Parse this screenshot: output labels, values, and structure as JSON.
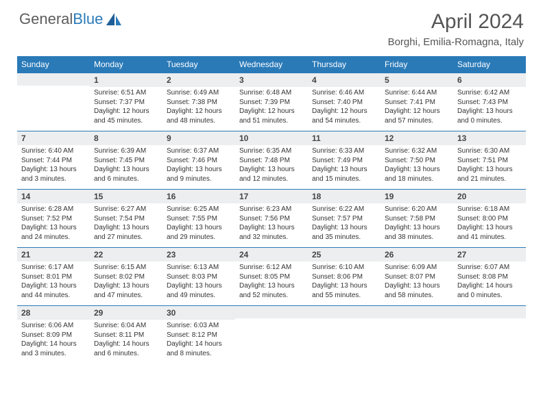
{
  "logo": {
    "word1": "General",
    "word2": "Blue"
  },
  "title": "April 2024",
  "location": "Borghi, Emilia-Romagna, Italy",
  "colors": {
    "header_bg": "#2a7ab8",
    "header_text": "#ffffff",
    "daynum_bg": "#eceeef",
    "daynum_border": "#2a7ab8",
    "body_text": "#333333",
    "logo_gray": "#5c5c5c",
    "logo_blue": "#2a7ab8"
  },
  "weekdays": [
    "Sunday",
    "Monday",
    "Tuesday",
    "Wednesday",
    "Thursday",
    "Friday",
    "Saturday"
  ],
  "weeks": [
    [
      null,
      {
        "n": "1",
        "sr": "Sunrise: 6:51 AM",
        "ss": "Sunset: 7:37 PM",
        "dl1": "Daylight: 12 hours",
        "dl2": "and 45 minutes."
      },
      {
        "n": "2",
        "sr": "Sunrise: 6:49 AM",
        "ss": "Sunset: 7:38 PM",
        "dl1": "Daylight: 12 hours",
        "dl2": "and 48 minutes."
      },
      {
        "n": "3",
        "sr": "Sunrise: 6:48 AM",
        "ss": "Sunset: 7:39 PM",
        "dl1": "Daylight: 12 hours",
        "dl2": "and 51 minutes."
      },
      {
        "n": "4",
        "sr": "Sunrise: 6:46 AM",
        "ss": "Sunset: 7:40 PM",
        "dl1": "Daylight: 12 hours",
        "dl2": "and 54 minutes."
      },
      {
        "n": "5",
        "sr": "Sunrise: 6:44 AM",
        "ss": "Sunset: 7:41 PM",
        "dl1": "Daylight: 12 hours",
        "dl2": "and 57 minutes."
      },
      {
        "n": "6",
        "sr": "Sunrise: 6:42 AM",
        "ss": "Sunset: 7:43 PM",
        "dl1": "Daylight: 13 hours",
        "dl2": "and 0 minutes."
      }
    ],
    [
      {
        "n": "7",
        "sr": "Sunrise: 6:40 AM",
        "ss": "Sunset: 7:44 PM",
        "dl1": "Daylight: 13 hours",
        "dl2": "and 3 minutes."
      },
      {
        "n": "8",
        "sr": "Sunrise: 6:39 AM",
        "ss": "Sunset: 7:45 PM",
        "dl1": "Daylight: 13 hours",
        "dl2": "and 6 minutes."
      },
      {
        "n": "9",
        "sr": "Sunrise: 6:37 AM",
        "ss": "Sunset: 7:46 PM",
        "dl1": "Daylight: 13 hours",
        "dl2": "and 9 minutes."
      },
      {
        "n": "10",
        "sr": "Sunrise: 6:35 AM",
        "ss": "Sunset: 7:48 PM",
        "dl1": "Daylight: 13 hours",
        "dl2": "and 12 minutes."
      },
      {
        "n": "11",
        "sr": "Sunrise: 6:33 AM",
        "ss": "Sunset: 7:49 PM",
        "dl1": "Daylight: 13 hours",
        "dl2": "and 15 minutes."
      },
      {
        "n": "12",
        "sr": "Sunrise: 6:32 AM",
        "ss": "Sunset: 7:50 PM",
        "dl1": "Daylight: 13 hours",
        "dl2": "and 18 minutes."
      },
      {
        "n": "13",
        "sr": "Sunrise: 6:30 AM",
        "ss": "Sunset: 7:51 PM",
        "dl1": "Daylight: 13 hours",
        "dl2": "and 21 minutes."
      }
    ],
    [
      {
        "n": "14",
        "sr": "Sunrise: 6:28 AM",
        "ss": "Sunset: 7:52 PM",
        "dl1": "Daylight: 13 hours",
        "dl2": "and 24 minutes."
      },
      {
        "n": "15",
        "sr": "Sunrise: 6:27 AM",
        "ss": "Sunset: 7:54 PM",
        "dl1": "Daylight: 13 hours",
        "dl2": "and 27 minutes."
      },
      {
        "n": "16",
        "sr": "Sunrise: 6:25 AM",
        "ss": "Sunset: 7:55 PM",
        "dl1": "Daylight: 13 hours",
        "dl2": "and 29 minutes."
      },
      {
        "n": "17",
        "sr": "Sunrise: 6:23 AM",
        "ss": "Sunset: 7:56 PM",
        "dl1": "Daylight: 13 hours",
        "dl2": "and 32 minutes."
      },
      {
        "n": "18",
        "sr": "Sunrise: 6:22 AM",
        "ss": "Sunset: 7:57 PM",
        "dl1": "Daylight: 13 hours",
        "dl2": "and 35 minutes."
      },
      {
        "n": "19",
        "sr": "Sunrise: 6:20 AM",
        "ss": "Sunset: 7:58 PM",
        "dl1": "Daylight: 13 hours",
        "dl2": "and 38 minutes."
      },
      {
        "n": "20",
        "sr": "Sunrise: 6:18 AM",
        "ss": "Sunset: 8:00 PM",
        "dl1": "Daylight: 13 hours",
        "dl2": "and 41 minutes."
      }
    ],
    [
      {
        "n": "21",
        "sr": "Sunrise: 6:17 AM",
        "ss": "Sunset: 8:01 PM",
        "dl1": "Daylight: 13 hours",
        "dl2": "and 44 minutes."
      },
      {
        "n": "22",
        "sr": "Sunrise: 6:15 AM",
        "ss": "Sunset: 8:02 PM",
        "dl1": "Daylight: 13 hours",
        "dl2": "and 47 minutes."
      },
      {
        "n": "23",
        "sr": "Sunrise: 6:13 AM",
        "ss": "Sunset: 8:03 PM",
        "dl1": "Daylight: 13 hours",
        "dl2": "and 49 minutes."
      },
      {
        "n": "24",
        "sr": "Sunrise: 6:12 AM",
        "ss": "Sunset: 8:05 PM",
        "dl1": "Daylight: 13 hours",
        "dl2": "and 52 minutes."
      },
      {
        "n": "25",
        "sr": "Sunrise: 6:10 AM",
        "ss": "Sunset: 8:06 PM",
        "dl1": "Daylight: 13 hours",
        "dl2": "and 55 minutes."
      },
      {
        "n": "26",
        "sr": "Sunrise: 6:09 AM",
        "ss": "Sunset: 8:07 PM",
        "dl1": "Daylight: 13 hours",
        "dl2": "and 58 minutes."
      },
      {
        "n": "27",
        "sr": "Sunrise: 6:07 AM",
        "ss": "Sunset: 8:08 PM",
        "dl1": "Daylight: 14 hours",
        "dl2": "and 0 minutes."
      }
    ],
    [
      {
        "n": "28",
        "sr": "Sunrise: 6:06 AM",
        "ss": "Sunset: 8:09 PM",
        "dl1": "Daylight: 14 hours",
        "dl2": "and 3 minutes."
      },
      {
        "n": "29",
        "sr": "Sunrise: 6:04 AM",
        "ss": "Sunset: 8:11 PM",
        "dl1": "Daylight: 14 hours",
        "dl2": "and 6 minutes."
      },
      {
        "n": "30",
        "sr": "Sunrise: 6:03 AM",
        "ss": "Sunset: 8:12 PM",
        "dl1": "Daylight: 14 hours",
        "dl2": "and 8 minutes."
      },
      null,
      null,
      null,
      null
    ]
  ]
}
